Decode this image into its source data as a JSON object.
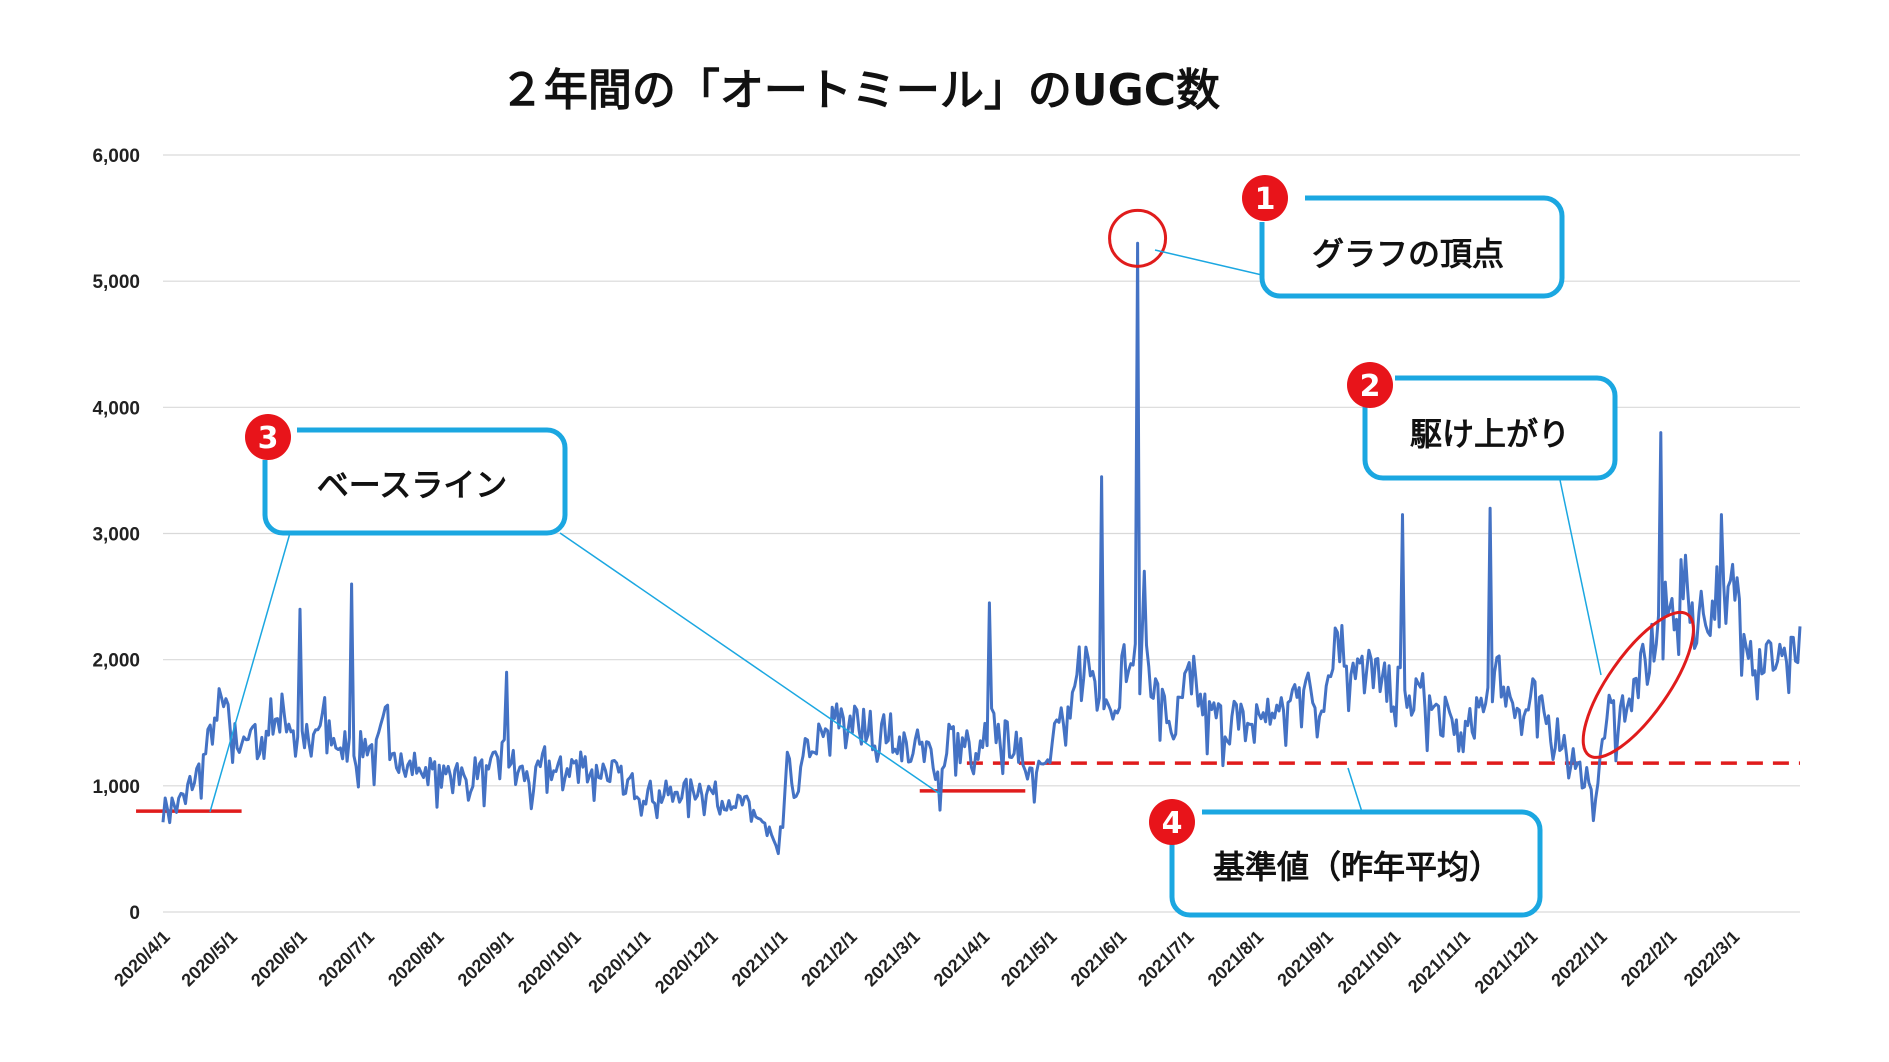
{
  "chart_data": {
    "type": "line",
    "title": "２年間の「オートミール」のUGC数",
    "xlabel": "",
    "ylabel": "",
    "ylim": [
      0,
      6000
    ],
    "yticks": [
      0,
      1000,
      2000,
      3000,
      4000,
      5000,
      6000
    ],
    "ytick_labels": [
      "0",
      "1,000",
      "2,000",
      "3,000",
      "4,000",
      "5,000",
      "6,000"
    ],
    "grid": true,
    "x_tick_labels": [
      "2020/4/1",
      "2020/5/1",
      "2020/6/1",
      "2020/7/1",
      "2020/8/1",
      "2020/9/1",
      "2020/10/1",
      "2020/11/1",
      "2020/12/1",
      "2021/1/1",
      "2021/2/1",
      "2021/3/1",
      "2021/4/1",
      "2021/5/1",
      "2021/6/1",
      "2021/7/1",
      "2021/8/1",
      "2021/9/1",
      "2021/10/1",
      "2021/11/1",
      "2021/12/1",
      "2022/1/1",
      "2022/2/1",
      "2022/3/1"
    ],
    "x_tick_days": [
      0,
      30,
      61,
      91,
      122,
      153,
      183,
      214,
      244,
      275,
      306,
      334,
      365,
      395,
      426,
      456,
      487,
      518,
      548,
      579,
      609,
      640,
      671,
      699
    ],
    "x_range_days": [
      0,
      729
    ],
    "line_color": "#4472C4",
    "anchors": [
      [
        0,
        800
      ],
      [
        3,
        880
      ],
      [
        6,
        820
      ],
      [
        10,
        960
      ],
      [
        14,
        1050
      ],
      [
        18,
        1200
      ],
      [
        22,
        1450
      ],
      [
        25,
        1700
      ],
      [
        28,
        1550
      ],
      [
        33,
        1350
      ],
      [
        38,
        1450
      ],
      [
        43,
        1320
      ],
      [
        48,
        1550
      ],
      [
        52,
        1600
      ],
      [
        57,
        1500
      ],
      [
        62,
        1400
      ],
      [
        66,
        1330
      ],
      [
        72,
        1550
      ],
      [
        76,
        1350
      ],
      [
        81,
        1320
      ],
      [
        86,
        1250
      ],
      [
        91,
        1350
      ],
      [
        95,
        1250
      ],
      [
        100,
        1550
      ],
      [
        104,
        1260
      ],
      [
        110,
        1150
      ],
      [
        115,
        1180
      ],
      [
        120,
        1100
      ],
      [
        125,
        1050
      ],
      [
        130,
        1200
      ],
      [
        135,
        1000
      ],
      [
        140,
        1150
      ],
      [
        145,
        1050
      ],
      [
        150,
        1300
      ],
      [
        155,
        1200
      ],
      [
        160,
        1100
      ],
      [
        165,
        1000
      ],
      [
        170,
        1200
      ],
      [
        175,
        1100
      ],
      [
        180,
        1150
      ],
      [
        186,
        1200
      ],
      [
        192,
        1100
      ],
      [
        198,
        1150
      ],
      [
        204,
        1050
      ],
      [
        210,
        1000
      ],
      [
        216,
        950
      ],
      [
        222,
        920
      ],
      [
        228,
        970
      ],
      [
        234,
        950
      ],
      [
        240,
        1000
      ],
      [
        246,
        930
      ],
      [
        252,
        900
      ],
      [
        258,
        860
      ],
      [
        264,
        780
      ],
      [
        270,
        650
      ],
      [
        274,
        430
      ],
      [
        278,
        1150
      ],
      [
        282,
        950
      ],
      [
        286,
        1250
      ],
      [
        290,
        1380
      ],
      [
        294,
        1350
      ],
      [
        298,
        1500
      ],
      [
        303,
        1560
      ],
      [
        308,
        1500
      ],
      [
        313,
        1480
      ],
      [
        318,
        1420
      ],
      [
        323,
        1450
      ],
      [
        328,
        1350
      ],
      [
        333,
        1300
      ],
      [
        338,
        1320
      ],
      [
        343,
        1250
      ],
      [
        346,
        1000
      ],
      [
        350,
        1450
      ],
      [
        354,
        1300
      ],
      [
        358,
        1350
      ],
      [
        362,
        1150
      ],
      [
        368,
        1500
      ],
      [
        373,
        1400
      ],
      [
        378,
        1350
      ],
      [
        384,
        1200
      ],
      [
        388,
        1100
      ],
      [
        392,
        1300
      ],
      [
        396,
        1350
      ],
      [
        400,
        1550
      ],
      [
        404,
        1450
      ],
      [
        409,
        2100
      ],
      [
        413,
        1900
      ],
      [
        417,
        1850
      ],
      [
        421,
        1700
      ],
      [
        425,
        1750
      ],
      [
        430,
        2100
      ],
      [
        434,
        1900
      ],
      [
        438,
        2050
      ],
      [
        442,
        1750
      ],
      [
        446,
        1600
      ],
      [
        450,
        1450
      ],
      [
        454,
        1700
      ],
      [
        458,
        1900
      ],
      [
        462,
        1650
      ],
      [
        466,
        1550
      ],
      [
        470,
        1550
      ],
      [
        474,
        1450
      ],
      [
        478,
        1600
      ],
      [
        482,
        1450
      ],
      [
        486,
        1550
      ],
      [
        490,
        1580
      ],
      [
        494,
        1650
      ],
      [
        498,
        1550
      ],
      [
        502,
        1650
      ],
      [
        506,
        1900
      ],
      [
        510,
        1750
      ],
      [
        514,
        1650
      ],
      [
        518,
        1800
      ],
      [
        522,
        2300
      ],
      [
        526,
        2050
      ],
      [
        530,
        2000
      ],
      [
        535,
        1900
      ],
      [
        540,
        1950
      ],
      [
        545,
        1750
      ],
      [
        550,
        1800
      ],
      [
        555,
        1700
      ],
      [
        560,
        1750
      ],
      [
        565,
        1600
      ],
      [
        570,
        1550
      ],
      [
        575,
        1500
      ],
      [
        580,
        1400
      ],
      [
        585,
        1550
      ],
      [
        590,
        1800
      ],
      [
        594,
        1900
      ],
      [
        598,
        1850
      ],
      [
        602,
        1700
      ],
      [
        606,
        1550
      ],
      [
        610,
        1700
      ],
      [
        614,
        1550
      ],
      [
        618,
        1500
      ],
      [
        622,
        1400
      ],
      [
        626,
        1300
      ],
      [
        630,
        1150
      ],
      [
        634,
        1050
      ],
      [
        637,
        800
      ],
      [
        640,
        1300
      ],
      [
        644,
        1600
      ],
      [
        648,
        1550
      ],
      [
        652,
        1700
      ],
      [
        656,
        1800
      ],
      [
        660,
        1950
      ],
      [
        664,
        2150
      ],
      [
        668,
        2350
      ],
      [
        672,
        2400
      ],
      [
        676,
        2600
      ],
      [
        680,
        2500
      ],
      [
        684,
        2350
      ],
      [
        688,
        2450
      ],
      [
        692,
        2550
      ],
      [
        696,
        2450
      ],
      [
        700,
        2600
      ],
      [
        704,
        2400
      ],
      [
        708,
        2050
      ],
      [
        712,
        2000
      ],
      [
        716,
        2050
      ],
      [
        720,
        2100
      ],
      [
        724,
        2000
      ],
      [
        729,
        2050
      ]
    ],
    "spikes": [
      [
        61,
        2400
      ],
      [
        84,
        2600
      ],
      [
        153,
        1900
      ],
      [
        368,
        2450
      ],
      [
        418,
        3450
      ],
      [
        434,
        5300
      ],
      [
        437,
        2700
      ],
      [
        552,
        3150
      ],
      [
        591,
        3200
      ],
      [
        667,
        3800
      ],
      [
        694,
        3150
      ]
    ],
    "reference_lines": [
      {
        "label": "基準値（昨年平均）",
        "value": 1180,
        "color": "#E01C1C",
        "dashed": true,
        "x_from_day": 358,
        "x_to_day": 729
      }
    ],
    "baseline_markers": [
      {
        "value": 800,
        "color": "#E01C1C",
        "x_from_day": -12,
        "x_to_day": 35
      },
      {
        "value": 960,
        "color": "#E01C1C",
        "x_from_day": 337,
        "x_to_day": 384
      }
    ],
    "highlights": [
      {
        "type": "circle",
        "day": 434,
        "value": 5300,
        "color": "#E01C1C"
      },
      {
        "type": "ellipse",
        "day_from": 635,
        "day_to": 679,
        "value_from": 1200,
        "value_to": 2400,
        "color": "#E01C1C"
      }
    ]
  },
  "annotations": [
    {
      "number": "1",
      "text": "グラフの頂点"
    },
    {
      "number": "2",
      "text": "駆け上がり"
    },
    {
      "number": "3",
      "text": "ベースライン"
    },
    {
      "number": "4",
      "text": "基準値（昨年平均）"
    }
  ],
  "colors": {
    "callout_border": "#1BA7E1",
    "badge_fill": "#E8141A",
    "grid": "#D9D9D9"
  }
}
